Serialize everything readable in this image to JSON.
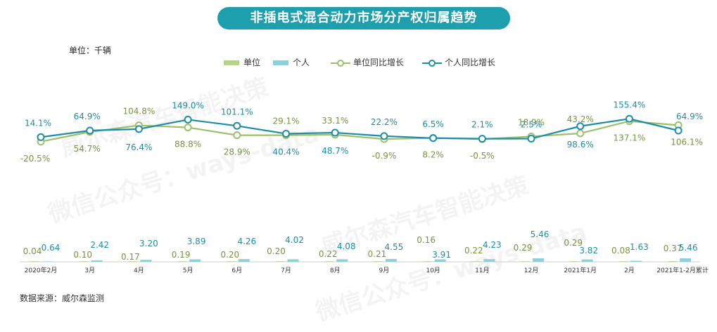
{
  "title": "非插电式混合动力市场分产权归属趋势",
  "unit_note": "单位：千辆",
  "source_note": "数据来源：威尔森监测",
  "watermarks": [
    "威尔森汽车智能决策",
    "微信公众号：ways-data",
    "威尔森汽车智能决策",
    "微信公众号：ways-data"
  ],
  "colors": {
    "title_bg": "#1e9fae",
    "corporate": "#b5d38a",
    "personal": "#8ecfd8",
    "corporate_growth": "#9cc06a",
    "personal_growth": "#1e8ea5",
    "corporate_label": "#7a9440",
    "personal_label": "#1e8ea5"
  },
  "chart_data": {
    "type": "bar",
    "categories": [
      "2020年2月",
      "3月",
      "4月",
      "5月",
      "6月",
      "7月",
      "8月",
      "9月",
      "10月",
      "11月",
      "12月",
      "2021年1月",
      "2月",
      "2021年1-2月累计"
    ],
    "legend": [
      "单位",
      "个人",
      "单位同比增长",
      "个人同比增长"
    ],
    "series": [
      {
        "name": "单位",
        "type": "bar",
        "values": [
          0.04,
          0.1,
          0.17,
          0.19,
          0.2,
          0.2,
          0.22,
          0.21,
          0.16,
          0.22,
          0.29,
          0.29,
          0.08,
          0.37
        ]
      },
      {
        "name": "个人",
        "type": "bar",
        "values": [
          0.64,
          2.42,
          3.2,
          3.89,
          4.26,
          4.02,
          4.08,
          4.55,
          3.91,
          4.23,
          5.46,
          3.82,
          1.63,
          5.46
        ]
      },
      {
        "name": "单位同比增长",
        "type": "line",
        "values": [
          -20.5,
          54.7,
          104.8,
          88.8,
          28.9,
          29.1,
          33.1,
          -0.9,
          8.2,
          -0.5,
          18.9,
          43.2,
          137.1,
          106.1
        ],
        "labels": [
          "-20.5%",
          "54.7%",
          "104.8%",
          "88.8%",
          "28.9%",
          "29.1%",
          "33.1%",
          "-0.9%",
          "8.2%",
          "-0.5%",
          "18.9%",
          "43.2%",
          "137.1%",
          "106.1%"
        ]
      },
      {
        "name": "个人同比增长",
        "type": "line",
        "values": [
          14.1,
          64.9,
          76.4,
          149.0,
          101.1,
          40.4,
          48.7,
          22.2,
          6.5,
          2.1,
          2.5,
          98.6,
          155.4,
          64.9
        ],
        "labels": [
          "14.1%",
          "64.9%",
          "76.4%",
          "149.0%",
          "101.1%",
          "40.4%",
          "48.7%",
          "22.2%",
          "6.5%",
          "2.1%",
          "2.5%",
          "98.6%",
          "155.4%",
          "64.9%"
        ]
      }
    ],
    "bar_value_labels": {
      "单位": [
        "0.04",
        "0.10",
        "0.17",
        "0.19",
        "0.20",
        "0.20",
        "0.22",
        "0.21",
        "0.16",
        "0.22",
        "0.29",
        "0.29",
        "0.08",
        "0.37"
      ],
      "个人": [
        "0.64",
        "2.42",
        "3.20",
        "3.89",
        "4.26",
        "4.02",
        "4.08",
        "4.55",
        "3.91",
        "4.23",
        "5.46",
        "3.82",
        "1.63",
        "5.46"
      ]
    },
    "grid": false,
    "legend_position": "top-center"
  }
}
